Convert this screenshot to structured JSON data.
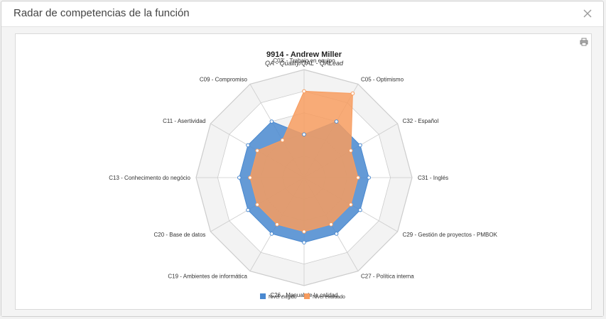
{
  "modal": {
    "title": "Radar de competencias de la función",
    "close_icon": "close-icon",
    "print_icon": "print-icon"
  },
  "chart_data": {
    "type": "radar",
    "title": "9914 - Andrew Miller",
    "subtitle": "QA - Quality/QAL - QALead",
    "categories": [
      "C03' - Trabajo en equipo",
      "C05 - Optimismo",
      "C32 - Español",
      "C31 - Inglés",
      "C29 - Gestión de proyectos - PMBOK",
      "C27 - Política interna",
      "C26 - Manual de la calidad",
      "C19 - Ambientes de informática",
      "C20 - Base de datos",
      "C13 - Conhecimento do negócio",
      "C11 - Asertividad",
      "C09 - Compromiso"
    ],
    "ylim": [
      0,
      5
    ],
    "rings": 5,
    "series": [
      {
        "name": "Nivel exigido",
        "color": "#4a89d0",
        "values": [
          2,
          3,
          3,
          3,
          3,
          3,
          3,
          3,
          3,
          3,
          3,
          3
        ]
      },
      {
        "name": "Nivel evaluado",
        "color": "#f79c5f",
        "values": [
          4,
          4.5,
          2.5,
          2.5,
          2.5,
          2.5,
          2.5,
          2.5,
          2.5,
          2.5,
          2.5,
          2
        ]
      }
    ],
    "legend": "bottom",
    "grid": true
  }
}
